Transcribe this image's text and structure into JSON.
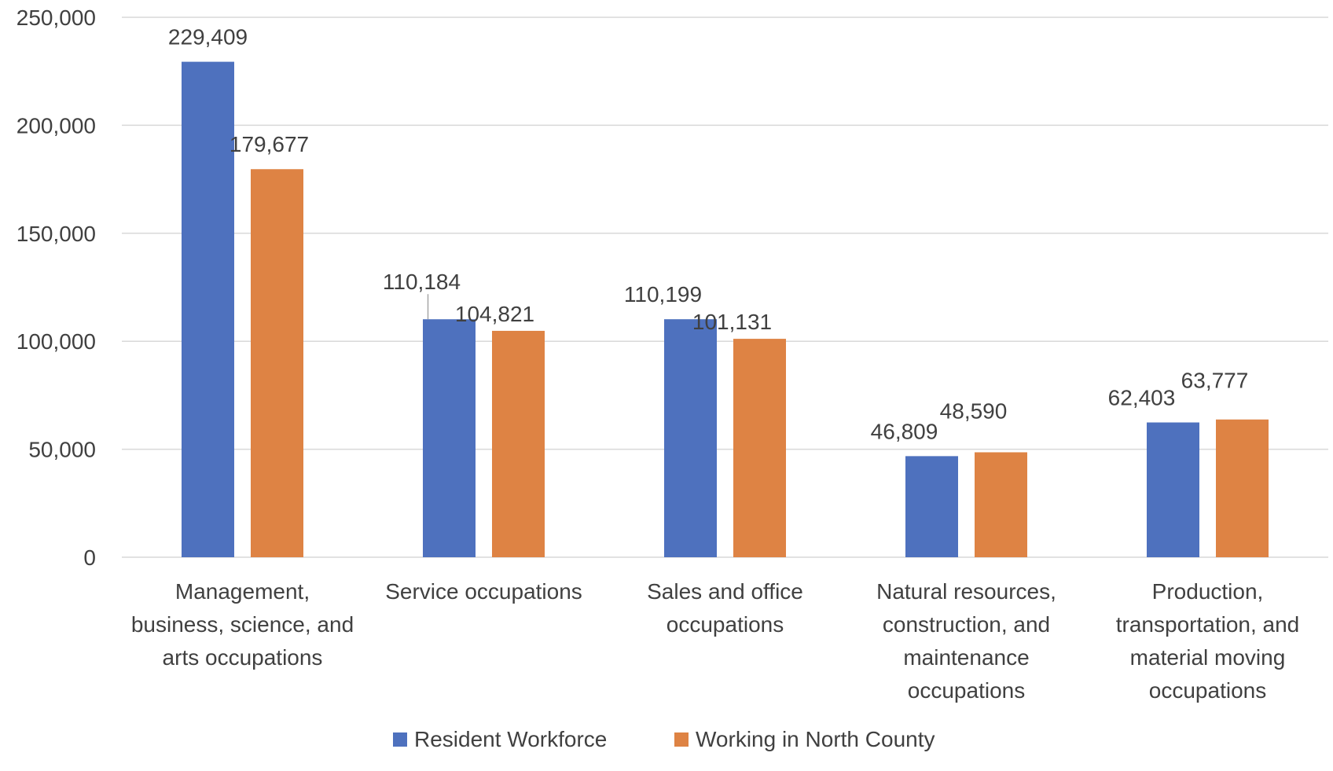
{
  "chart_data": {
    "type": "bar",
    "title": "",
    "xlabel": "",
    "ylabel": "",
    "ylim": [
      0,
      250000
    ],
    "yticks": [
      0,
      50000,
      100000,
      150000,
      200000,
      250000
    ],
    "ytick_labels": [
      "0",
      "50,000",
      "100,000",
      "150,000",
      "200,000",
      "250,000"
    ],
    "grid": true,
    "legend_position": "bottom",
    "categories": [
      [
        "Management,",
        "business, science, and",
        "arts occupations"
      ],
      [
        "Service occupations"
      ],
      [
        "Sales and office",
        "occupations"
      ],
      [
        "Natural resources,",
        "construction, and",
        "maintenance",
        "occupations"
      ],
      [
        "Production,",
        "transportation, and",
        "material moving",
        "occupations"
      ]
    ],
    "series": [
      {
        "name": "Resident Workforce",
        "color": "#4E71BE",
        "values": [
          229409,
          110184,
          110199,
          46809,
          62403
        ],
        "labels": [
          "229,409",
          "110,184",
          "110,199",
          "46,809",
          "62,403"
        ]
      },
      {
        "name": "Working in North County",
        "color": "#DE8344",
        "values": [
          179677,
          104821,
          101131,
          48590,
          63777
        ],
        "labels": [
          "179,677",
          "104,821",
          "101,131",
          "48,590",
          "63,777"
        ]
      }
    ]
  },
  "colors": {
    "grid": "#D9D9D9",
    "axis": "#D9D9D9",
    "text": "#404040"
  }
}
